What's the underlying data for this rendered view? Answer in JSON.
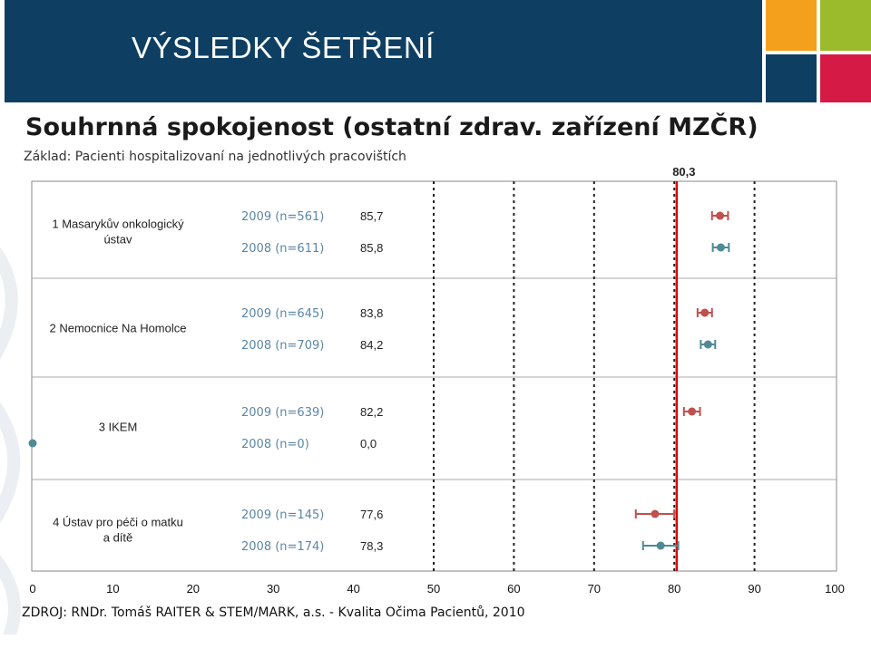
{
  "header": {
    "title": "VÝSLEDKY ŠETŘENÍ"
  },
  "colors": {
    "header_bg": "#0e3f63",
    "accent_orange": "#f4a01c",
    "accent_green": "#9bbb2c",
    "accent_navy": "#0e3f63",
    "accent_red": "#d61a46",
    "series_2009": "#c0504d",
    "series_2008": "#4f8a96",
    "reference_line": "#e00000"
  },
  "title": "Souhrnná spokojenost (ostatní zdrav. zařízení MZČR)",
  "subtitle": "Základ: Pacienti hospitalizovaní na jednotlivých pracovištích",
  "source": "ZDROJ: RNDr. Tomáš RAITER & STEM/MARK, a.s. -  Kvalita Očima Pacientů, 2010",
  "chart_data": {
    "type": "scatter",
    "x_range": [
      0,
      100
    ],
    "x_ticks": [
      "0",
      "10",
      "20",
      "30",
      "40",
      "50",
      "60",
      "70",
      "80",
      "90",
      "100"
    ],
    "reference": {
      "value": 80.3,
      "label": "80,3"
    },
    "groups": [
      {
        "label": "1 Masarykův onkologický ústav",
        "rows": [
          {
            "year_label": "2009 (n=561)",
            "value_label": "85,7",
            "value": 85.7,
            "ci": [
              84.7,
              86.7
            ],
            "series": "2009"
          },
          {
            "year_label": "2008 (n=611)",
            "value_label": "85,8",
            "value": 85.8,
            "ci": [
              84.8,
              86.8
            ],
            "series": "2008"
          }
        ]
      },
      {
        "label": "2 Nemocnice Na Homolce",
        "rows": [
          {
            "year_label": "2009 (n=645)",
            "value_label": "83,8",
            "value": 83.8,
            "ci": [
              82.9,
              84.7
            ],
            "series": "2009"
          },
          {
            "year_label": "2008 (n=709)",
            "value_label": "84,2",
            "value": 84.2,
            "ci": [
              83.3,
              85.1
            ],
            "series": "2008"
          }
        ]
      },
      {
        "label": "3 IKEM",
        "rows": [
          {
            "year_label": "2009 (n=639)",
            "value_label": "82,2",
            "value": 82.2,
            "ci": [
              81.2,
              83.2
            ],
            "series": "2009"
          },
          {
            "year_label": "2008 (n=0)",
            "value_label": "0,0",
            "value": 0.0,
            "ci": null,
            "series": "2008"
          }
        ]
      },
      {
        "label": "4 Ústav pro péči o matku a dítě",
        "rows": [
          {
            "year_label": "2009 (n=145)",
            "value_label": "77,6",
            "value": 77.6,
            "ci": [
              75.2,
              80.0
            ],
            "series": "2009"
          },
          {
            "year_label": "2008 (n=174)",
            "value_label": "78,3",
            "value": 78.3,
            "ci": [
              76.1,
              80.5
            ],
            "series": "2008"
          }
        ]
      }
    ]
  }
}
